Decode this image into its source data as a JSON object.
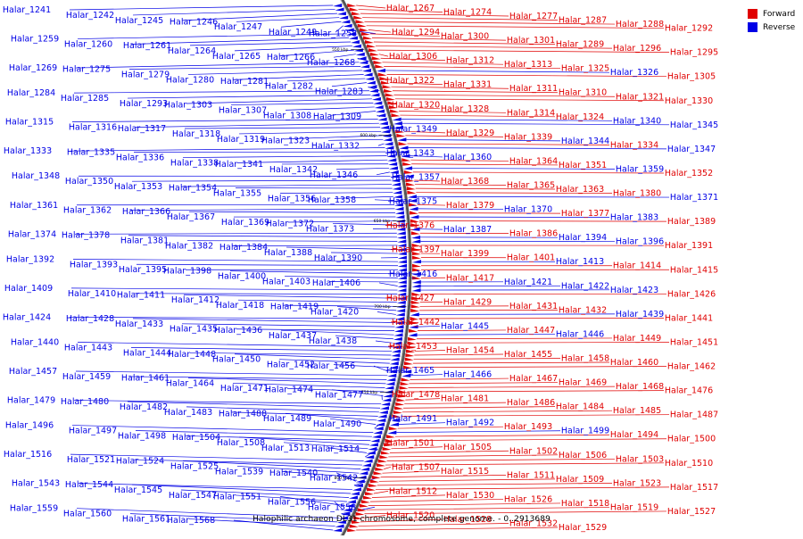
{
  "colors": {
    "forward": "#e00000",
    "reverse": "#0000e6",
    "backbone": "#7a7a7a"
  },
  "legend": {
    "forward": "Forward",
    "reverse": "Reverse"
  },
  "caption": "Halophilic archaeon DL31 chromosome, complete genome. - 0..2913689",
  "scale_marks": [
    "550 kbp",
    "600 kbp",
    "650 kbp",
    "700 kbp",
    "750 kbp",
    "800 kbp"
  ],
  "labels_left": [
    "Halar_1241",
    "Halar_1242",
    "Halar_1245",
    "Halar_1246",
    "Halar_1247",
    "Halar_1249",
    "Halar_1258",
    "Halar_1259",
    "Halar_1260",
    "Halar_1261",
    "Halar_1264",
    "Halar_1265",
    "Halar_1266",
    "Halar_1268",
    "Halar_1269",
    "Halar_1275",
    "Halar_1279",
    "Halar_1280",
    "Halar_1281",
    "Halar_1282",
    "Halar_1283",
    "Halar_1284",
    "Halar_1285",
    "Halar_1293",
    "Halar_1303",
    "Halar_1307",
    "Halar_1308",
    "Halar_1309",
    "Halar_1315",
    "Halar_1316",
    "Halar_1317",
    "Halar_1318",
    "Halar_1319",
    "Halar_1323",
    "Halar_1332",
    "Halar_1333",
    "Halar_1335",
    "Halar_1336",
    "Halar_1338",
    "Halar_1341",
    "Halar_1342",
    "Halar_1346",
    "Halar_1348",
    "Halar_1350",
    "Halar_1353",
    "Halar_1354",
    "Halar_1355",
    "Halar_1356",
    "Halar_1358",
    "Halar_1361",
    "Halar_1362",
    "Halar_1366",
    "Halar_1367",
    "Halar_1369",
    "Halar_1372",
    "Halar_1373",
    "Halar_1374",
    "Halar_1378",
    "Halar_1381",
    "Halar_1382",
    "Halar_1384",
    "Halar_1388",
    "Halar_1390",
    "Halar_1392",
    "Halar_1393",
    "Halar_1395",
    "Halar_1398",
    "Halar_1400",
    "Halar_1403",
    "Halar_1406",
    "Halar_1409",
    "Halar_1410",
    "Halar_1411",
    "Halar_1412",
    "Halar_1418",
    "Halar_1419",
    "Halar_1420",
    "Halar_1424",
    "Halar_1428",
    "Halar_1433",
    "Halar_1435",
    "Halar_1436",
    "Halar_1437",
    "Halar_1438",
    "Halar_1440",
    "Halar_1443",
    "Halar_1444",
    "Halar_1448",
    "Halar_1450",
    "Halar_1452",
    "Halar_1456",
    "Halar_1457",
    "Halar_1459",
    "Halar_1461",
    "Halar_1464",
    "Halar_1471",
    "Halar_1474",
    "Halar_1477",
    "Halar_1479",
    "Halar_1480",
    "Halar_1482",
    "Halar_1483",
    "Halar_1488",
    "Halar_1489",
    "Halar_1490",
    "Halar_1496",
    "Halar_1497",
    "Halar_1498",
    "Halar_1504",
    "Halar_1508",
    "Halar_1513",
    "Halar_1514",
    "Halar_1516",
    "Halar_1521",
    "Halar_1524",
    "Halar_1525",
    "Halar_1539",
    "Halar_1540",
    "Halar_1542",
    "Halar_1543",
    "Halar_1544",
    "Halar_1545",
    "Halar_1547",
    "Halar_1551",
    "Halar_1556",
    "Halar_1558",
    "Halar_1559",
    "Halar_1560",
    "Halar_1561",
    "Halar_1568"
  ],
  "labels_right": [
    {
      "t": "Halar_1267",
      "s": "f"
    },
    {
      "t": "Halar_1274",
      "s": "f"
    },
    {
      "t": "Halar_1277",
      "s": "f"
    },
    {
      "t": "Halar_1287",
      "s": "f"
    },
    {
      "t": "Halar_1288",
      "s": "f"
    },
    {
      "t": "Halar_1292",
      "s": "f"
    },
    {
      "t": "Halar_1294",
      "s": "f"
    },
    {
      "t": "Halar_1300",
      "s": "f"
    },
    {
      "t": "Halar_1301",
      "s": "f"
    },
    {
      "t": "Halar_1289",
      "s": "f"
    },
    {
      "t": "Halar_1296",
      "s": "f"
    },
    {
      "t": "Halar_1295",
      "s": "f"
    },
    {
      "t": "Halar_1306",
      "s": "f"
    },
    {
      "t": "Halar_1312",
      "s": "f"
    },
    {
      "t": "Halar_1313",
      "s": "f"
    },
    {
      "t": "Halar_1325",
      "s": "f"
    },
    {
      "t": "Halar_1326",
      "s": "r"
    },
    {
      "t": "Halar_1305",
      "s": "f"
    },
    {
      "t": "Halar_1322",
      "s": "f"
    },
    {
      "t": "Halar_1331",
      "s": "f"
    },
    {
      "t": "Halar_1311",
      "s": "f"
    },
    {
      "t": "Halar_1310",
      "s": "f"
    },
    {
      "t": "Halar_1321",
      "s": "f"
    },
    {
      "t": "Halar_1330",
      "s": "f"
    },
    {
      "t": "Halar_1320",
      "s": "f"
    },
    {
      "t": "Halar_1328",
      "s": "f"
    },
    {
      "t": "Halar_1314",
      "s": "f"
    },
    {
      "t": "Halar_1324",
      "s": "f"
    },
    {
      "t": "Halar_1340",
      "s": "r"
    },
    {
      "t": "Halar_1345",
      "s": "r"
    },
    {
      "t": "Halar_1349",
      "s": "r"
    },
    {
      "t": "Halar_1329",
      "s": "f"
    },
    {
      "t": "Halar_1339",
      "s": "f"
    },
    {
      "t": "Halar_1344",
      "s": "r"
    },
    {
      "t": "Halar_1334",
      "s": "f"
    },
    {
      "t": "Halar_1347",
      "s": "r"
    },
    {
      "t": "Halar_1343",
      "s": "r"
    },
    {
      "t": "Halar_1360",
      "s": "r"
    },
    {
      "t": "Halar_1364",
      "s": "f"
    },
    {
      "t": "Halar_1351",
      "s": "f"
    },
    {
      "t": "Halar_1359",
      "s": "r"
    },
    {
      "t": "Halar_1352",
      "s": "f"
    },
    {
      "t": "Halar_1357",
      "s": "r"
    },
    {
      "t": "Halar_1368",
      "s": "f"
    },
    {
      "t": "Halar_1365",
      "s": "f"
    },
    {
      "t": "Halar_1363",
      "s": "f"
    },
    {
      "t": "Halar_1380",
      "s": "f"
    },
    {
      "t": "Halar_1371",
      "s": "r"
    },
    {
      "t": "Halar_1375",
      "s": "r"
    },
    {
      "t": "Halar_1379",
      "s": "f"
    },
    {
      "t": "Halar_1370",
      "s": "r"
    },
    {
      "t": "Halar_1377",
      "s": "f"
    },
    {
      "t": "Halar_1383",
      "s": "r"
    },
    {
      "t": "Halar_1389",
      "s": "f"
    },
    {
      "t": "Halar_1376",
      "s": "f"
    },
    {
      "t": "Halar_1387",
      "s": "r"
    },
    {
      "t": "Halar_1386",
      "s": "f"
    },
    {
      "t": "Halar_1394",
      "s": "r"
    },
    {
      "t": "Halar_1396",
      "s": "r"
    },
    {
      "t": "Halar_1391",
      "s": "f"
    },
    {
      "t": "Halar_1397",
      "s": "f"
    },
    {
      "t": "Halar_1399",
      "s": "f"
    },
    {
      "t": "Halar_1401",
      "s": "f"
    },
    {
      "t": "Halar_1413",
      "s": "r"
    },
    {
      "t": "Halar_1414",
      "s": "f"
    },
    {
      "t": "Halar_1415",
      "s": "f"
    },
    {
      "t": "Halar_1416",
      "s": "r"
    },
    {
      "t": "Halar_1417",
      "s": "f"
    },
    {
      "t": "Halar_1421",
      "s": "r"
    },
    {
      "t": "Halar_1422",
      "s": "r"
    },
    {
      "t": "Halar_1423",
      "s": "r"
    },
    {
      "t": "Halar_1426",
      "s": "f"
    },
    {
      "t": "Halar_1427",
      "s": "f"
    },
    {
      "t": "Halar_1429",
      "s": "f"
    },
    {
      "t": "Halar_1431",
      "s": "f"
    },
    {
      "t": "Halar_1432",
      "s": "f"
    },
    {
      "t": "Halar_1439",
      "s": "r"
    },
    {
      "t": "Halar_1441",
      "s": "f"
    },
    {
      "t": "Halar_1442",
      "s": "f"
    },
    {
      "t": "Halar_1445",
      "s": "r"
    },
    {
      "t": "Halar_1447",
      "s": "f"
    },
    {
      "t": "Halar_1446",
      "s": "r"
    },
    {
      "t": "Halar_1449",
      "s": "f"
    },
    {
      "t": "Halar_1451",
      "s": "f"
    },
    {
      "t": "Halar_1453",
      "s": "f"
    },
    {
      "t": "Halar_1454",
      "s": "f"
    },
    {
      "t": "Halar_1455",
      "s": "f"
    },
    {
      "t": "Halar_1458",
      "s": "f"
    },
    {
      "t": "Halar_1460",
      "s": "f"
    },
    {
      "t": "Halar_1462",
      "s": "f"
    },
    {
      "t": "Halar_1465",
      "s": "r"
    },
    {
      "t": "Halar_1466",
      "s": "r"
    },
    {
      "t": "Halar_1467",
      "s": "f"
    },
    {
      "t": "Halar_1469",
      "s": "f"
    },
    {
      "t": "Halar_1468",
      "s": "f"
    },
    {
      "t": "Halar_1476",
      "s": "f"
    },
    {
      "t": "Halar_1478",
      "s": "f"
    },
    {
      "t": "Halar_1481",
      "s": "f"
    },
    {
      "t": "Halar_1486",
      "s": "f"
    },
    {
      "t": "Halar_1484",
      "s": "f"
    },
    {
      "t": "Halar_1485",
      "s": "f"
    },
    {
      "t": "Halar_1487",
      "s": "f"
    },
    {
      "t": "Halar_1491",
      "s": "r"
    },
    {
      "t": "Halar_1492",
      "s": "r"
    },
    {
      "t": "Halar_1493",
      "s": "f"
    },
    {
      "t": "Halar_1499",
      "s": "r"
    },
    {
      "t": "Halar_1494",
      "s": "f"
    },
    {
      "t": "Halar_1500",
      "s": "f"
    },
    {
      "t": "Halar_1501",
      "s": "f"
    },
    {
      "t": "Halar_1505",
      "s": "f"
    },
    {
      "t": "Halar_1502",
      "s": "f"
    },
    {
      "t": "Halar_1506",
      "s": "f"
    },
    {
      "t": "Halar_1503",
      "s": "f"
    },
    {
      "t": "Halar_1510",
      "s": "f"
    },
    {
      "t": "Halar_1507",
      "s": "f"
    },
    {
      "t": "Halar_1515",
      "s": "f"
    },
    {
      "t": "Halar_1511",
      "s": "f"
    },
    {
      "t": "Halar_1509",
      "s": "f"
    },
    {
      "t": "Halar_1523",
      "s": "f"
    },
    {
      "t": "Halar_1517",
      "s": "f"
    },
    {
      "t": "Halar_1512",
      "s": "f"
    },
    {
      "t": "Halar_1530",
      "s": "f"
    },
    {
      "t": "Halar_1526",
      "s": "f"
    },
    {
      "t": "Halar_1518",
      "s": "f"
    },
    {
      "t": "Halar_1519",
      "s": "f"
    },
    {
      "t": "Halar_1527",
      "s": "f"
    },
    {
      "t": "Halar_1520",
      "s": "f"
    },
    {
      "t": "Halar_1528",
      "s": "f"
    },
    {
      "t": "Halar_1532",
      "s": "f"
    },
    {
      "t": "Halar_1529",
      "s": "f"
    }
  ]
}
